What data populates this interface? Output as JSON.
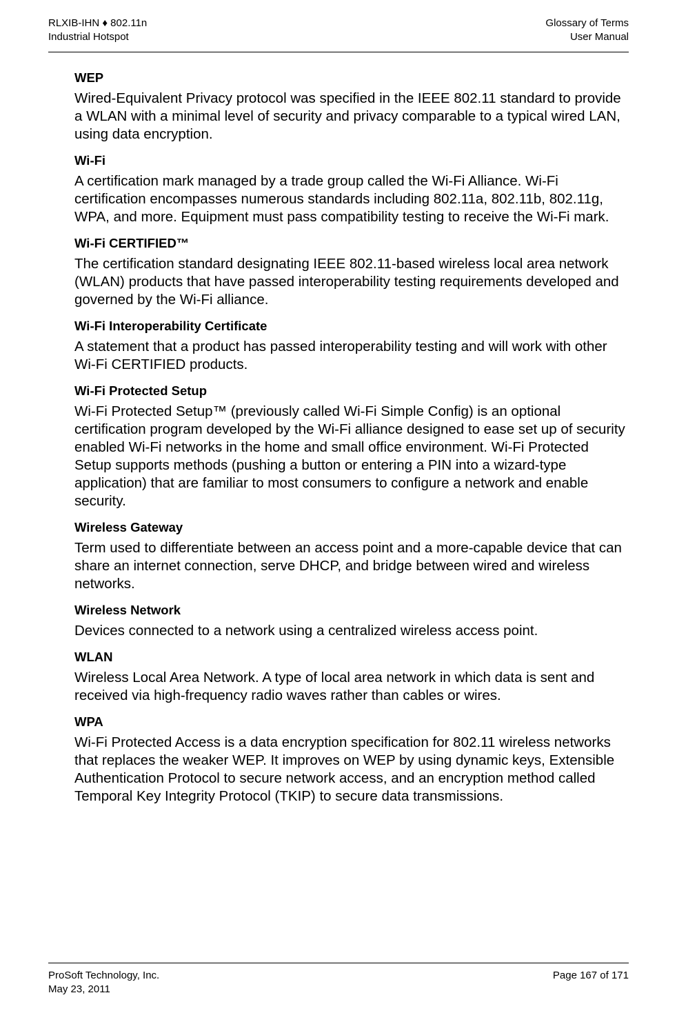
{
  "header": {
    "left_line1": "RLXIB-IHN ♦ 802.11n",
    "left_line2": "Industrial Hotspot",
    "right_line1": "Glossary of Terms",
    "right_line2": "User Manual"
  },
  "entries": [
    {
      "term": "WEP",
      "definition": "Wired-Equivalent Privacy protocol was specified in the IEEE 802.11 standard to provide a WLAN with a minimal level of security and privacy comparable to a typical wired LAN, using data encryption."
    },
    {
      "term": "Wi-Fi",
      "definition": "A certification mark managed by a trade group called the Wi-Fi Alliance. Wi-Fi certification encompasses numerous standards including 802.11a, 802.11b, 802.11g, WPA, and more. Equipment must pass compatibility testing to receive the Wi-Fi mark."
    },
    {
      "term": "Wi-Fi CERTIFIED™",
      "definition": "The certification standard designating IEEE 802.11-based wireless local area network (WLAN) products that have passed interoperability testing requirements developed and governed by the Wi-Fi alliance."
    },
    {
      "term": "Wi-Fi Interoperability Certificate",
      "definition": "A statement that a product has passed interoperability testing and will work with other Wi-Fi CERTIFIED products."
    },
    {
      "term": "Wi-Fi Protected Setup",
      "definition": "Wi-Fi Protected Setup™ (previously called Wi-Fi Simple Config) is an optional certification program developed by the Wi-Fi alliance designed to ease set up of security enabled Wi-Fi networks in the home and small office environment. Wi-Fi Protected Setup supports methods (pushing a button or entering a PIN into a wizard-type application) that are familiar to most consumers to configure a network and enable security."
    },
    {
      "term": "Wireless Gateway",
      "definition": "Term used to differentiate between an access point and a more-capable device that can share an internet connection, serve DHCP, and bridge between wired and wireless networks."
    },
    {
      "term": "Wireless Network",
      "definition": "Devices connected to a network using a centralized wireless access point."
    },
    {
      "term": "WLAN",
      "definition": "Wireless Local Area Network. A type of local area network in which data is sent and received via high-frequency radio waves rather than cables or wires."
    },
    {
      "term": "WPA",
      "definition": "Wi-Fi Protected Access is a data encryption specification for 802.11 wireless networks that replaces the weaker WEP. It improves on WEP by using dynamic keys, Extensible Authentication Protocol to secure network access, and an encryption method called Temporal Key Integrity Protocol (TKIP) to secure data transmissions."
    }
  ],
  "footer": {
    "left_line1": "ProSoft Technology, Inc.",
    "left_line2": "May 23, 2011",
    "right_line1": "Page 167 of 171"
  }
}
